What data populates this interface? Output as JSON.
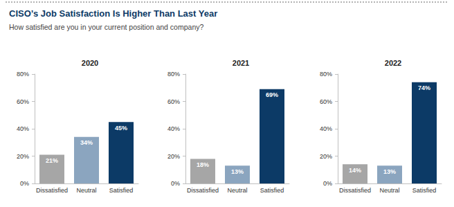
{
  "header": {
    "title": "CISO’s Job Satisfaction Is Higher Than Last Year",
    "subtitle": "How satisfied are you in your current position and company?"
  },
  "chart_data": [
    {
      "type": "bar",
      "title": "2020",
      "categories": [
        "Dissatisfied",
        "Neutral",
        "Satisfied"
      ],
      "values": [
        21,
        34,
        45
      ],
      "value_labels": [
        "21%",
        "34%",
        "45%"
      ],
      "colors": [
        "#a6a6a6",
        "#8ba5bf",
        "#0c3a66"
      ],
      "ylim": [
        0,
        80
      ],
      "yticks": [
        {
          "value": 0,
          "label": "0%"
        },
        {
          "value": 20,
          "label": "20%"
        },
        {
          "value": 40,
          "label": "40%"
        },
        {
          "value": 60,
          "label": "60%"
        },
        {
          "value": 80,
          "label": "80%"
        }
      ],
      "grid": false,
      "data_labels": true
    },
    {
      "type": "bar",
      "title": "2021",
      "categories": [
        "Dissatisfied",
        "Neutral",
        "Satisfied"
      ],
      "values": [
        18,
        13,
        69
      ],
      "value_labels": [
        "18%",
        "13%",
        "69%"
      ],
      "colors": [
        "#a6a6a6",
        "#8ba5bf",
        "#0c3a66"
      ],
      "ylim": [
        0,
        80
      ],
      "yticks": [
        {
          "value": 0,
          "label": "0%"
        },
        {
          "value": 20,
          "label": "20%"
        },
        {
          "value": 40,
          "label": "40%"
        },
        {
          "value": 60,
          "label": "60%"
        },
        {
          "value": 80,
          "label": "80%"
        }
      ],
      "grid": false,
      "data_labels": true
    },
    {
      "type": "bar",
      "title": "2022",
      "categories": [
        "Dissatisfied",
        "Neutral",
        "Satisfied"
      ],
      "values": [
        14,
        13,
        74
      ],
      "value_labels": [
        "14%",
        "13%",
        "74%"
      ],
      "colors": [
        "#a6a6a6",
        "#8ba5bf",
        "#0c3a66"
      ],
      "ylim": [
        0,
        80
      ],
      "yticks": [
        {
          "value": 0,
          "label": "0%"
        },
        {
          "value": 20,
          "label": "20%"
        },
        {
          "value": 40,
          "label": "40%"
        },
        {
          "value": 60,
          "label": "60%"
        },
        {
          "value": 80,
          "label": "80%"
        }
      ],
      "grid": false,
      "data_labels": true
    }
  ]
}
